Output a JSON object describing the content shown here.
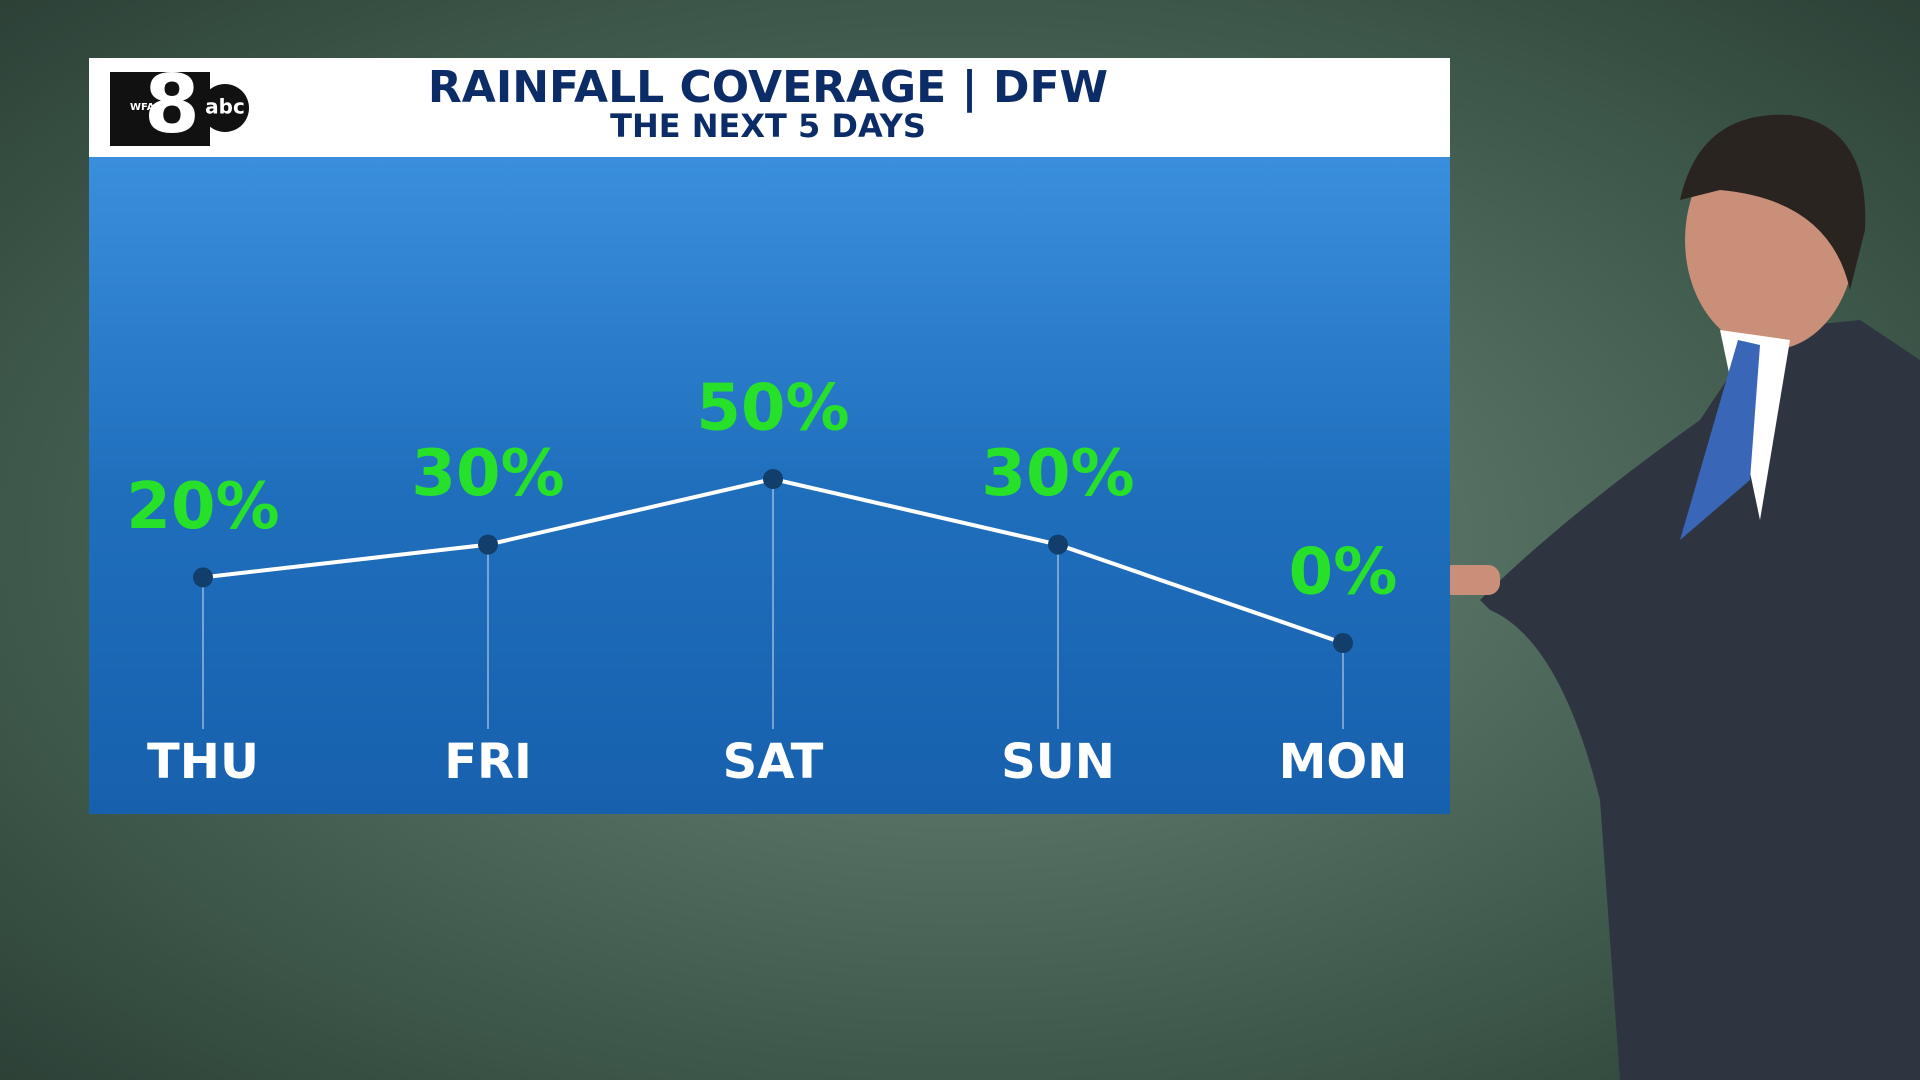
{
  "logo": {
    "station": "WFAA",
    "channel": "8",
    "network": "abc"
  },
  "chart_data": {
    "type": "line",
    "title": "RAINFALL COVERAGE | DFW",
    "subtitle": "THE NEXT 5 DAYS",
    "categories": [
      "THU",
      "FRI",
      "SAT",
      "SUN",
      "MON"
    ],
    "values": [
      20,
      30,
      50,
      30,
      0
    ],
    "value_labels": [
      "20%",
      "30%",
      "50%",
      "30%",
      "0%"
    ],
    "color": "#ffffff"
  }
}
